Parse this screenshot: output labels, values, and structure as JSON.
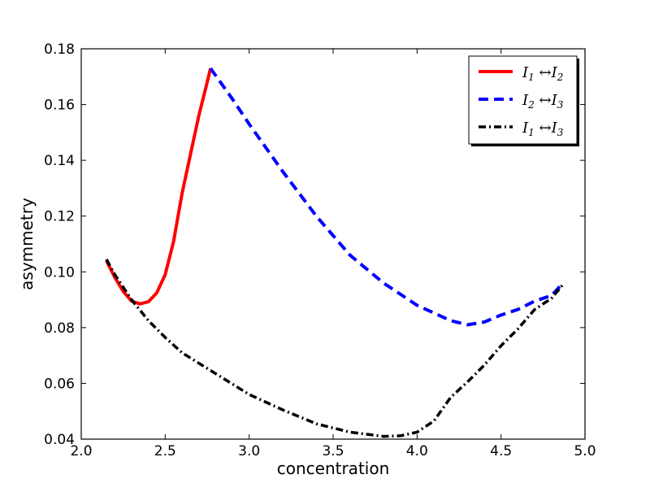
{
  "chart_data": {
    "type": "line",
    "title": "",
    "xlabel": "concentration",
    "ylabel": "asymmetry",
    "xlim": [
      2.0,
      5.0
    ],
    "ylim": [
      0.04,
      0.18
    ],
    "xticks": [
      2.0,
      2.5,
      3.0,
      3.5,
      4.0,
      4.5,
      5.0
    ],
    "xtick_labels": [
      "2.0",
      "2.5",
      "3.0",
      "3.5",
      "4.0",
      "4.5",
      "5.0"
    ],
    "yticks": [
      0.04,
      0.06,
      0.08,
      0.1,
      0.12,
      0.14,
      0.16,
      0.18
    ],
    "ytick_labels": [
      "0.04",
      "0.06",
      "0.08",
      "0.10",
      "0.12",
      "0.14",
      "0.16",
      "0.18"
    ],
    "grid": false,
    "legend_position": "top-right",
    "series": [
      {
        "name": "I1 ↔ I2",
        "legend_sub_a": "1",
        "legend_sub_b": "2",
        "color": "#ff0000",
        "style": "solid",
        "x": [
          2.15,
          2.2,
          2.25,
          2.3,
          2.35,
          2.4,
          2.45,
          2.5,
          2.55,
          2.6,
          2.65,
          2.7,
          2.75,
          2.77
        ],
        "y": [
          0.104,
          0.098,
          0.093,
          0.0895,
          0.0885,
          0.0893,
          0.0925,
          0.099,
          0.111,
          0.128,
          0.142,
          0.156,
          0.168,
          0.173
        ]
      },
      {
        "name": "I2 ↔ I3",
        "legend_sub_a": "2",
        "legend_sub_b": "3",
        "color": "#0000ff",
        "style": "dashed",
        "x": [
          2.77,
          2.9,
          3.0,
          3.2,
          3.4,
          3.6,
          3.8,
          4.0,
          4.2,
          4.3,
          4.4,
          4.5,
          4.6,
          4.7,
          4.8,
          4.87
        ],
        "y": [
          0.173,
          0.162,
          0.153,
          0.136,
          0.12,
          0.106,
          0.096,
          0.088,
          0.0825,
          0.081,
          0.082,
          0.0845,
          0.0865,
          0.0895,
          0.0915,
          0.096
        ]
      },
      {
        "name": "I1 ↔ I3",
        "legend_sub_a": "1",
        "legend_sub_b": "3",
        "color": "#000000",
        "style": "dashdot",
        "x": [
          2.15,
          2.2,
          2.3,
          2.4,
          2.5,
          2.6,
          2.8,
          3.0,
          3.2,
          3.4,
          3.6,
          3.8,
          3.9,
          4.0,
          4.1,
          4.2,
          4.3,
          4.4,
          4.5,
          4.6,
          4.7,
          4.8,
          4.87
        ],
        "y": [
          0.1045,
          0.099,
          0.09,
          0.0825,
          0.0765,
          0.071,
          0.0635,
          0.056,
          0.0505,
          0.0455,
          0.0425,
          0.041,
          0.0412,
          0.0425,
          0.0465,
          0.055,
          0.0605,
          0.0665,
          0.0735,
          0.0795,
          0.0865,
          0.0905,
          0.0955
        ]
      }
    ]
  }
}
